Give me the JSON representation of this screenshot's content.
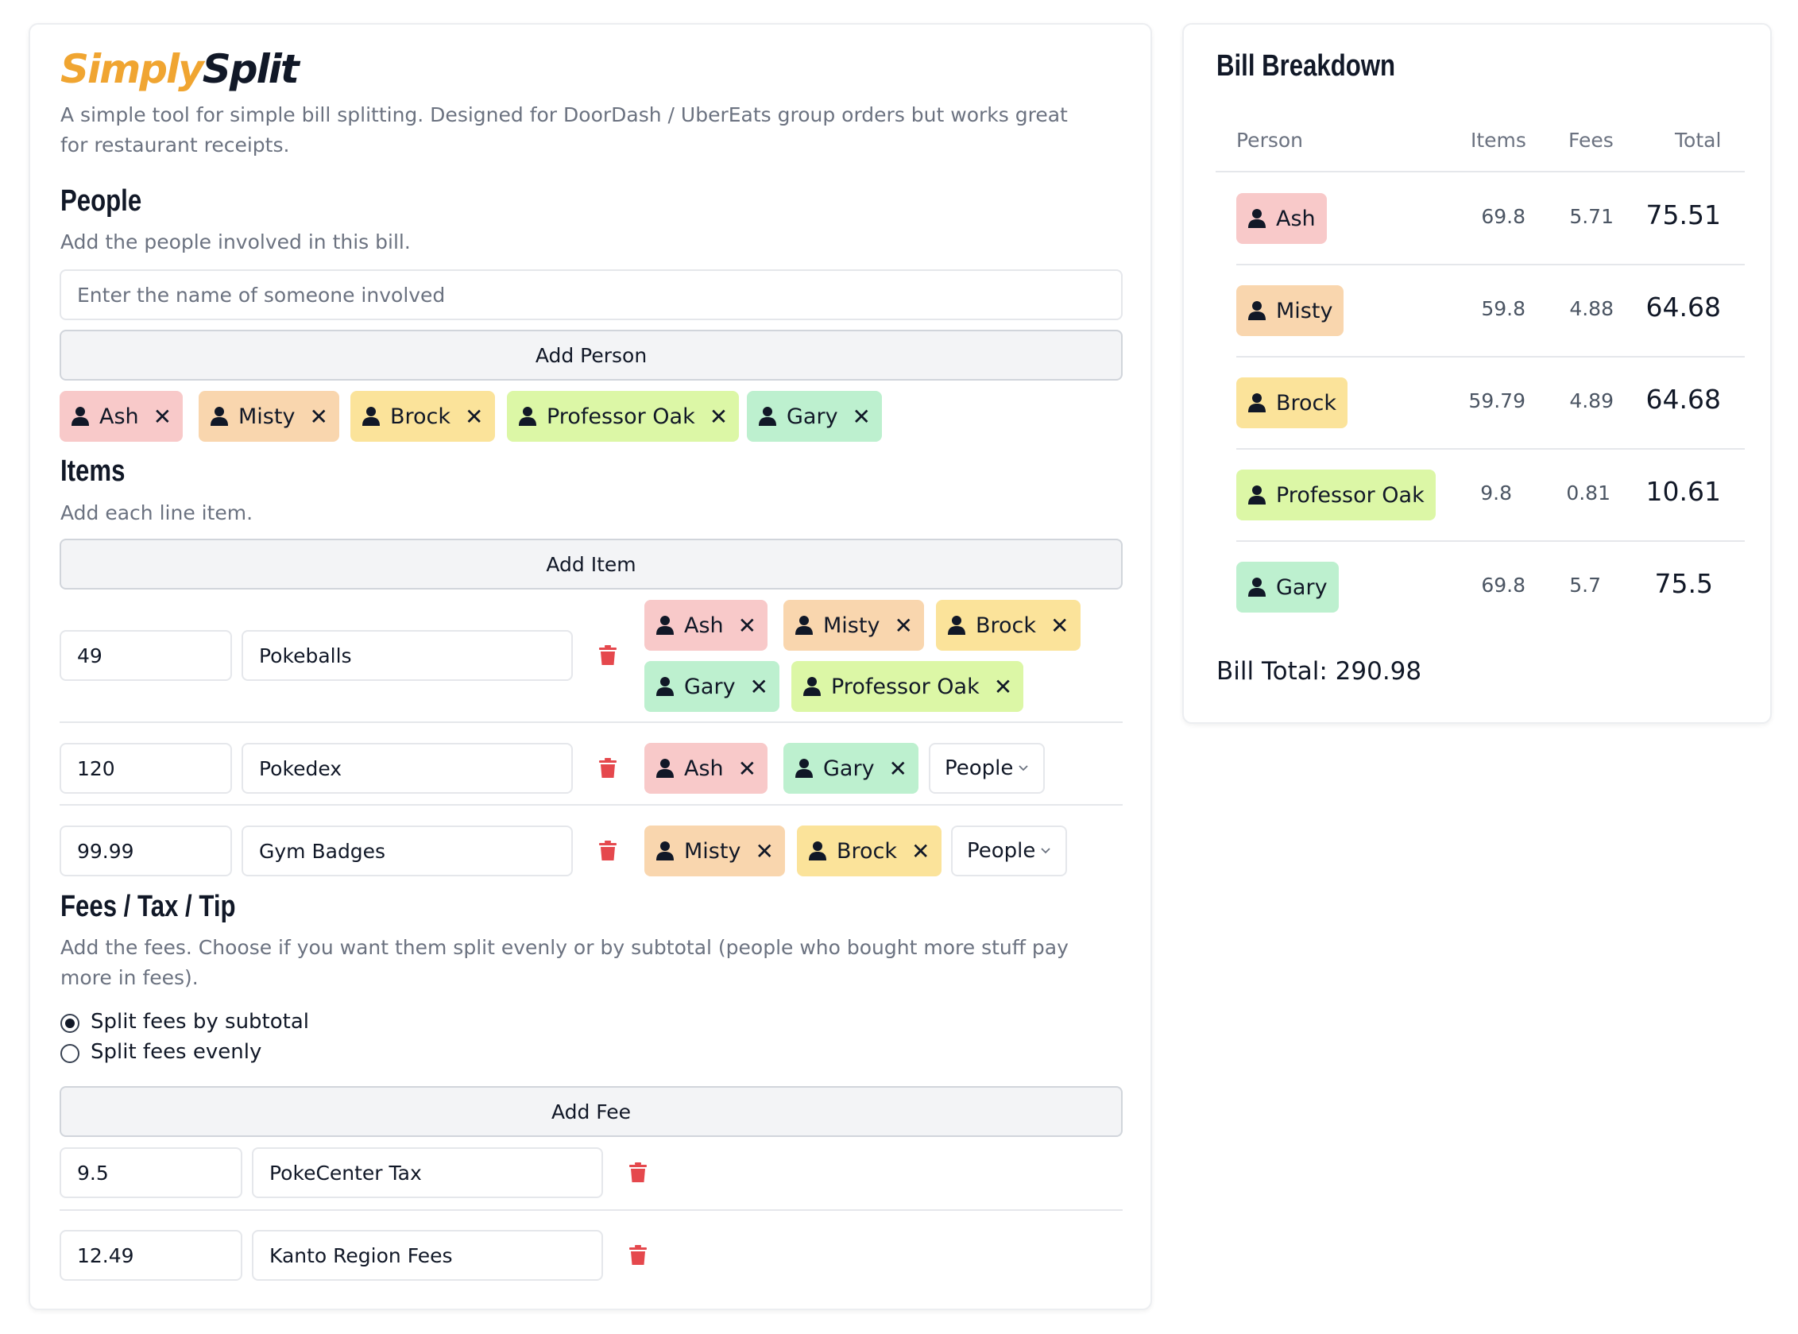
{
  "app": {
    "logo_part1": "Simply",
    "logo_part2": "Split",
    "tagline": "A simple tool for simple bill splitting. Designed for DoorDash / UberEats group orders but works great for restaurant receipts."
  },
  "people_section": {
    "title": "People",
    "subtitle": "Add the people involved in this bill.",
    "input_placeholder": "Enter the name of someone involved",
    "add_button": "Add Person",
    "people": [
      "Ash",
      "Misty",
      "Brock",
      "Professor Oak",
      "Gary"
    ]
  },
  "items_section": {
    "title": "Items",
    "subtitle": "Add each line item.",
    "add_button": "Add Item",
    "dropdown_label": "People",
    "items": [
      {
        "price": "49",
        "name": "Pokeballs",
        "people": [
          "Ash",
          "Misty",
          "Brock",
          "Gary",
          "Professor Oak"
        ]
      },
      {
        "price": "120",
        "name": "Pokedex",
        "people": [
          "Ash",
          "Gary"
        ]
      },
      {
        "price": "99.99",
        "name": "Gym Badges",
        "people": [
          "Misty",
          "Brock"
        ]
      }
    ]
  },
  "fees_section": {
    "title": "Fees / Tax / Tip",
    "subtitle": "Add the fees. Choose if you want them split evenly or by subtotal (people who bought more stuff pay more in fees).",
    "radio_subtotal": "Split fees by subtotal",
    "radio_evenly": "Split fees evenly",
    "selected": "subtotal",
    "add_button": "Add Fee",
    "fees": [
      {
        "amount": "9.5",
        "name": "PokeCenter Tax"
      },
      {
        "amount": "12.49",
        "name": "Kanto Region Fees"
      }
    ]
  },
  "breakdown": {
    "title": "Bill Breakdown",
    "headers": {
      "person": "Person",
      "items": "Items",
      "fees": "Fees",
      "total": "Total"
    },
    "rows": [
      {
        "person": "Ash",
        "items": "69.8",
        "fees": "5.71",
        "total": "75.51"
      },
      {
        "person": "Misty",
        "items": "59.8",
        "fees": "4.88",
        "total": "64.68"
      },
      {
        "person": "Brock",
        "items": "59.79",
        "fees": "4.89",
        "total": "64.68"
      },
      {
        "person": "Professor Oak",
        "items": "9.8",
        "fees": "0.81",
        "total": "10.61"
      },
      {
        "person": "Gary",
        "items": "69.8",
        "fees": "5.7",
        "total": "75.5"
      }
    ],
    "bill_total": "Bill Total: 290.98"
  },
  "icons": {
    "person": "person-icon",
    "remove": "close-icon",
    "delete": "trash-icon",
    "dropdown": "chevron-down-icon"
  },
  "colors": {
    "Ash": "#f8c9c9",
    "Misty": "#f9d6ae",
    "Brock": "#fbe39a",
    "Professor Oak": "#dcf7a6",
    "Gary": "#bdf0cf",
    "logo_accent": "#f0a531",
    "delete": "#e5484d"
  }
}
